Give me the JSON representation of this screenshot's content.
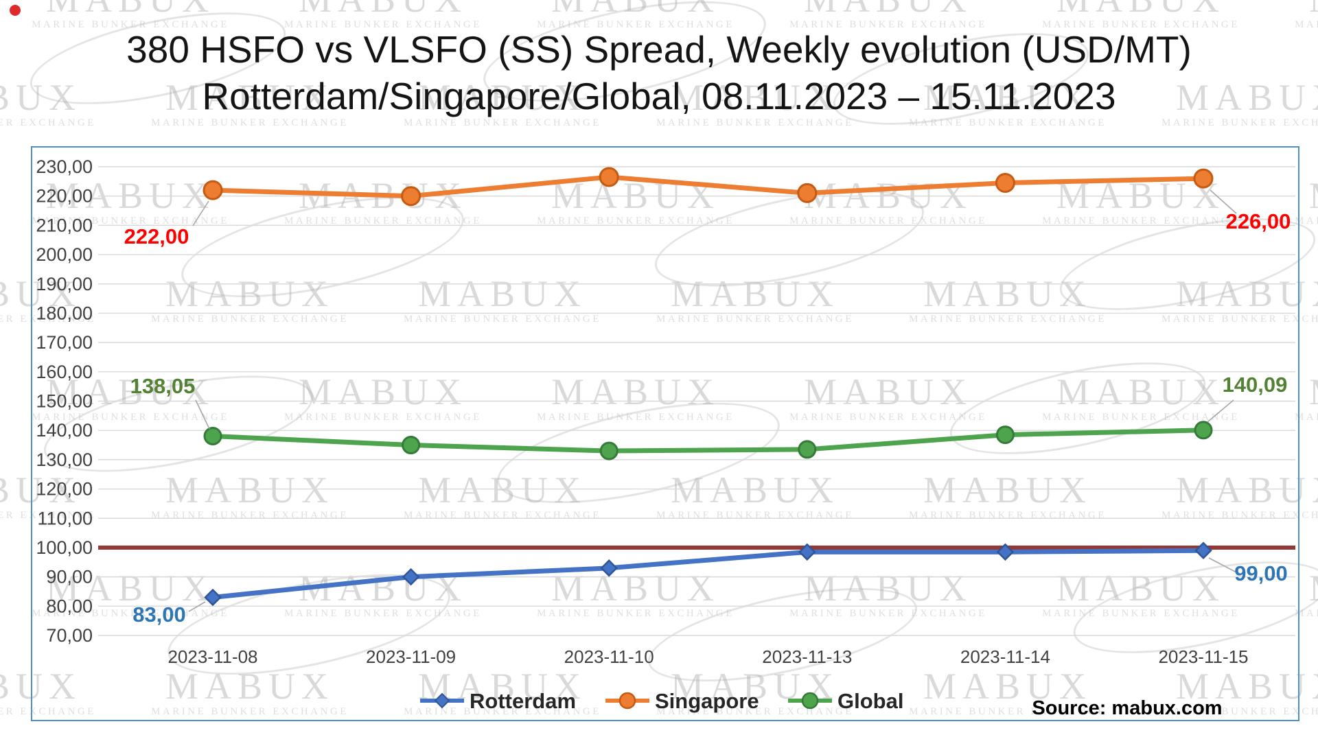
{
  "title": {
    "line1": "380 HSFO vs VLSFO (SS) Spread, Weekly evolution (USD/MT)",
    "line2": "Rotterdam/Singapore/Global, 08.11.2023 – 15.11.2023"
  },
  "source": "Source: mabux.com",
  "watermark": {
    "brand": "MABUX",
    "tagline": "MARINE BUNKER EXCHANGE"
  },
  "chart_data": {
    "type": "line",
    "title": "380 HSFO vs VLSFO (SS) Spread, Weekly evolution (USD/MT) Rotterdam/Singapore/Global, 08.11.2023 – 15.11.2023",
    "x": [
      "2023-11-08",
      "2023-11-09",
      "2023-11-10",
      "2023-11-13",
      "2023-11-14",
      "2023-11-15"
    ],
    "series": [
      {
        "name": "Rotterdam",
        "color": "#4472c4",
        "marker": "diamond",
        "marker_border": "#2f5597",
        "label_color": "#2e75b6",
        "values": [
          83.0,
          90.0,
          93.0,
          98.5,
          98.5,
          99.0
        ],
        "start_label": "83,00",
        "end_label": "99,00"
      },
      {
        "name": "Singapore",
        "color": "#ed7d31",
        "marker": "circle",
        "marker_border": "#c55a11",
        "label_color": "#ff0000",
        "values": [
          222.0,
          220.0,
          226.5,
          221.0,
          224.5,
          226.0
        ],
        "start_label": "222,00",
        "end_label": "226,00"
      },
      {
        "name": "Global",
        "color": "#4da44d",
        "marker": "circle",
        "marker_border": "#357a38",
        "label_color": "#548235",
        "values": [
          138.05,
          135.0,
          133.0,
          133.5,
          138.5,
          140.09
        ],
        "start_label": "138,05",
        "end_label": "140,09"
      }
    ],
    "reference_line": {
      "value": 100,
      "color": "#953735"
    },
    "ylim": [
      70,
      230
    ],
    "ytick_step": 10,
    "ytick_label_format": "decimal-comma two places (e.g. 230,00)",
    "xlabel": "",
    "ylabel": "",
    "grid": true,
    "legend_position": "bottom"
  }
}
